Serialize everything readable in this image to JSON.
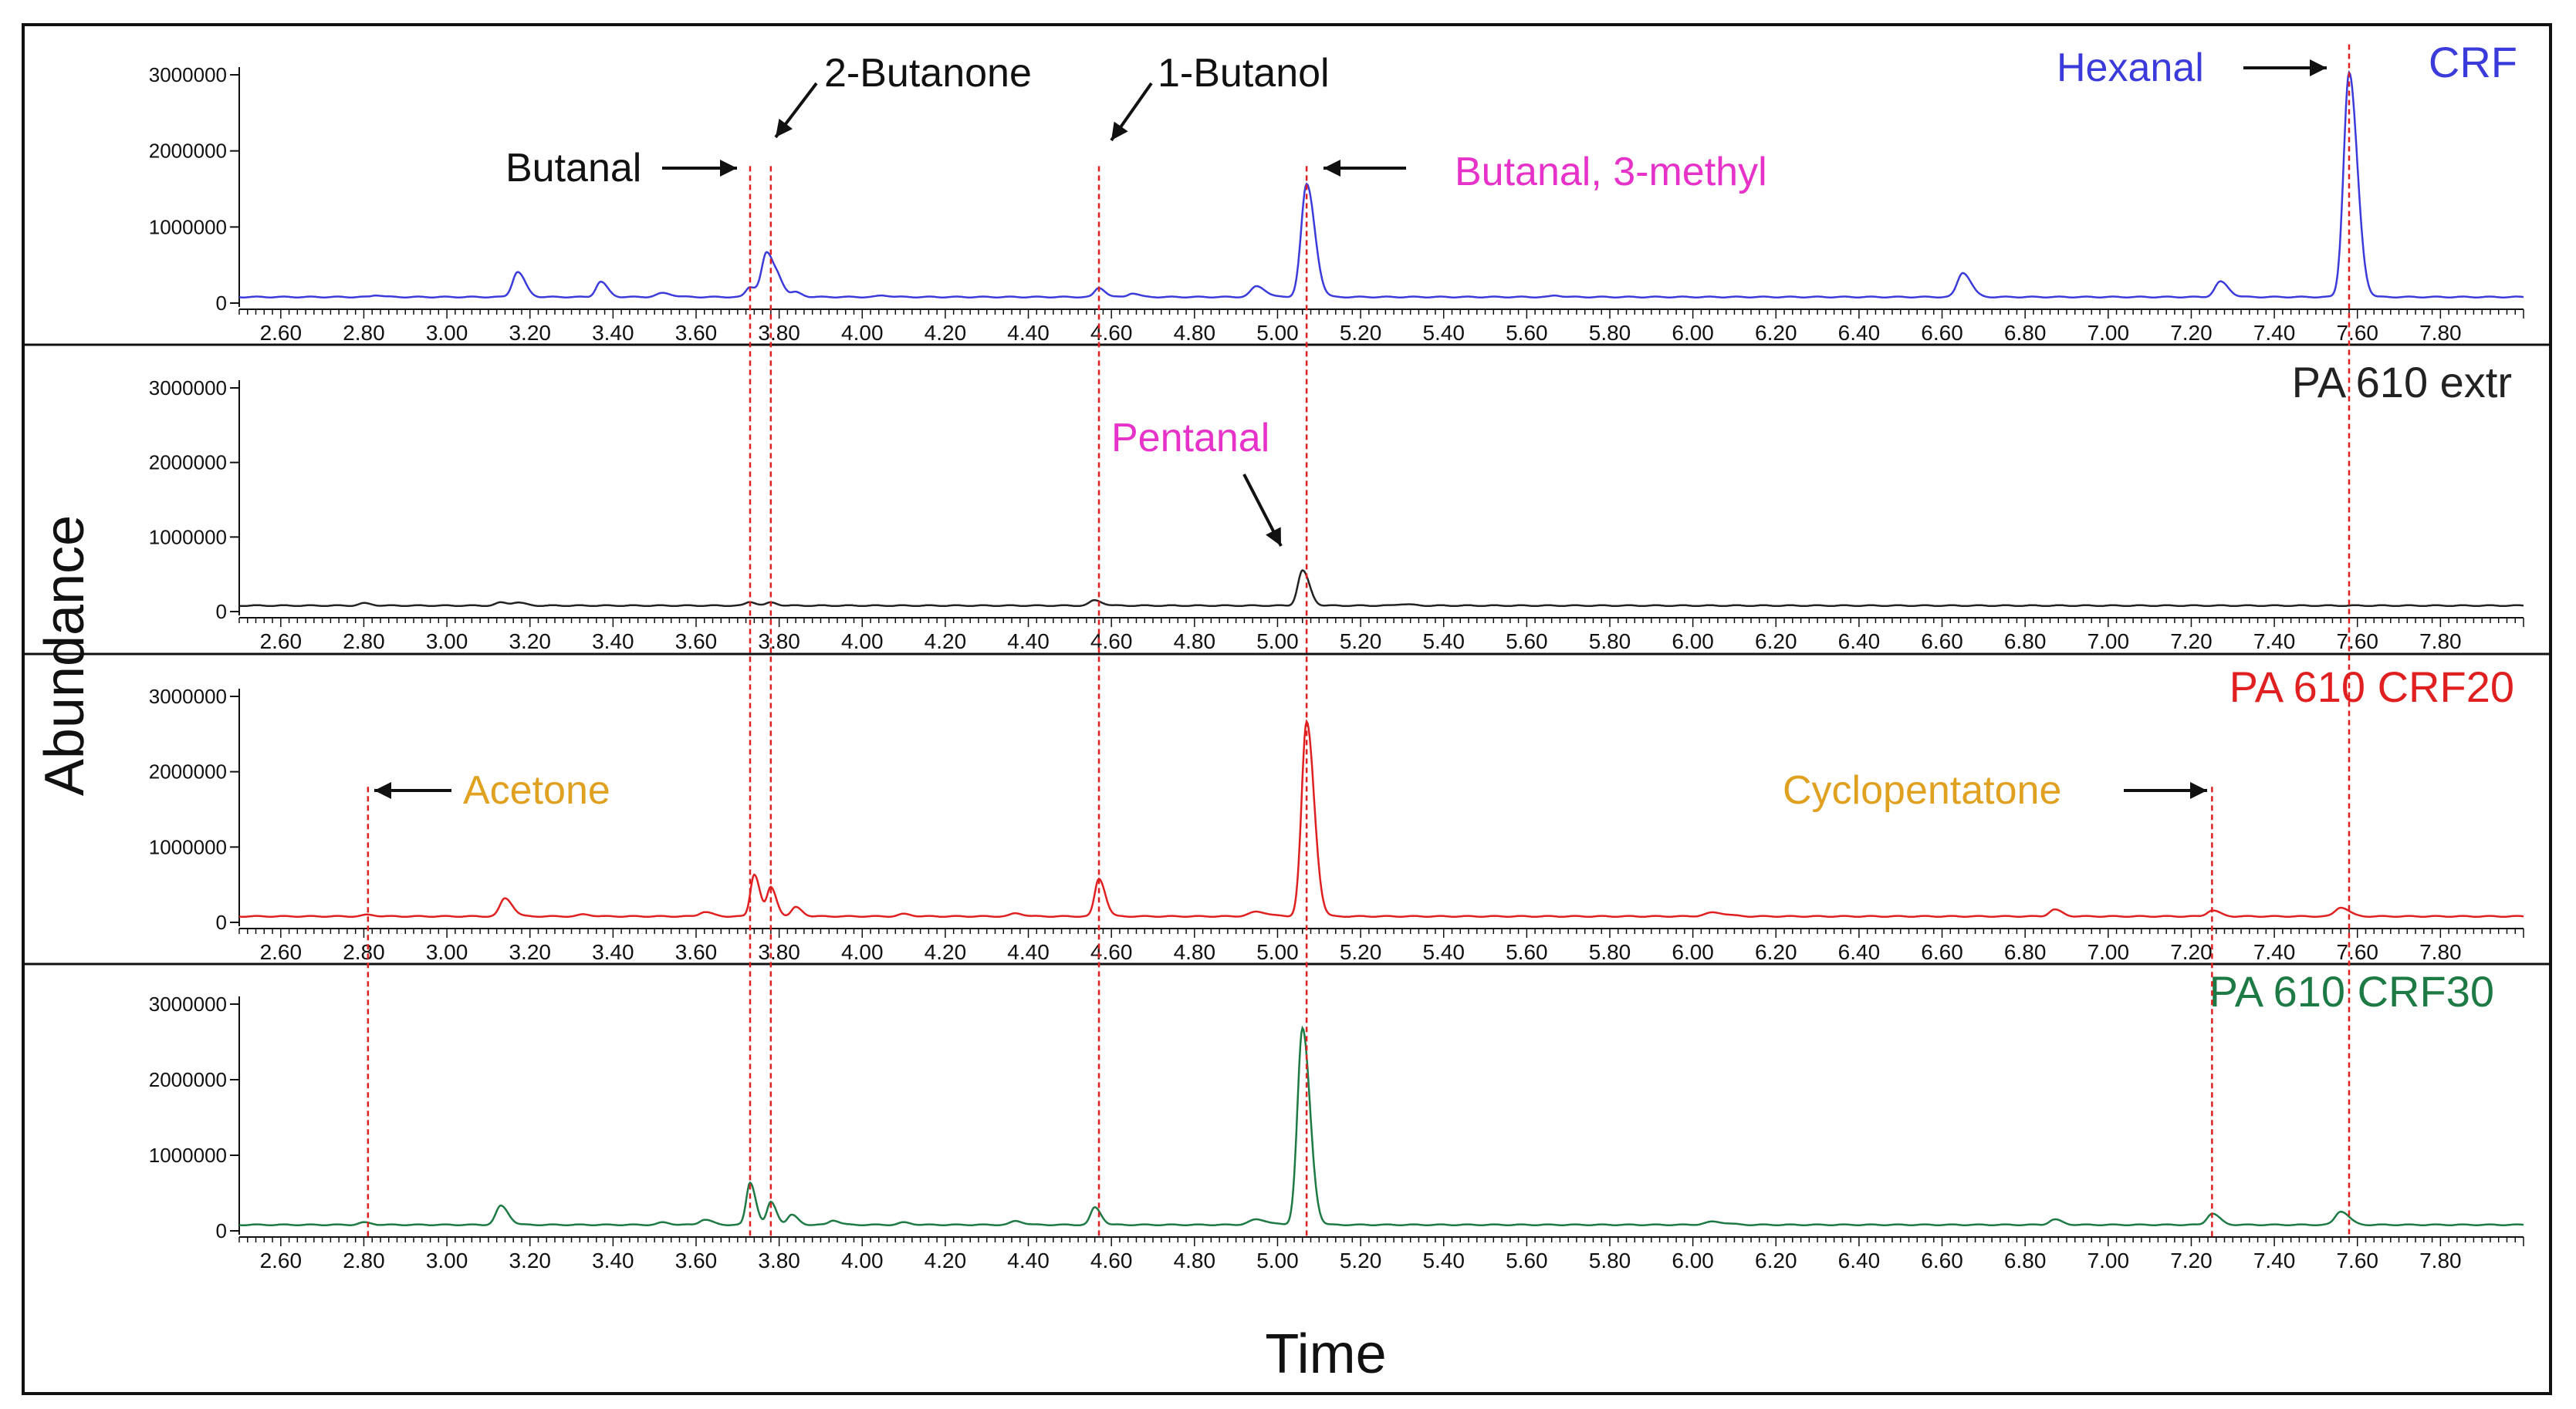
{
  "chart_data": {
    "type": "line",
    "title": "",
    "xlabel": "Time",
    "ylabel": "Abundance",
    "xlim": [
      2.5,
      8.0
    ],
    "ylim": [
      0,
      3000000
    ],
    "x_ticks": [
      "2.60",
      "2.80",
      "3.00",
      "3.20",
      "3.40",
      "3.60",
      "3.80",
      "4.00",
      "4.20",
      "4.40",
      "4.60",
      "4.80",
      "5.00",
      "5.20",
      "5.40",
      "5.60",
      "5.80",
      "6.00",
      "6.20",
      "6.40",
      "6.60",
      "6.80",
      "7.00",
      "7.20",
      "7.40",
      "7.60",
      "7.80"
    ],
    "y_ticks": [
      "0",
      "1000000",
      "2000000",
      "3000000"
    ],
    "grid": false,
    "colors": {
      "CRF": "#3b3bdb",
      "PA 610 extr": "#222222",
      "PA 610 CRF20": "#e02020",
      "PA 610 CRF30": "#1e7a45",
      "ref_line": "#e02020",
      "annot_black": "#111111",
      "annot_magenta": "#e632c8",
      "annot_orange": "#e0a020",
      "annot_blue": "#3b3bdb"
    },
    "series": [
      {
        "name": "CRF",
        "baseline": 80000,
        "peaks": [
          [
            2.83,
            25000,
            0.01
          ],
          [
            3.17,
            330000,
            0.012
          ],
          [
            3.37,
            200000,
            0.011
          ],
          [
            3.52,
            50000,
            0.015
          ],
          [
            3.73,
            130000,
            0.01
          ],
          [
            3.77,
            580000,
            0.012
          ],
          [
            3.8,
            150000,
            0.01
          ],
          [
            3.84,
            60000,
            0.01
          ],
          [
            4.05,
            20000,
            0.012
          ],
          [
            4.57,
            120000,
            0.01
          ],
          [
            4.65,
            50000,
            0.01
          ],
          [
            4.95,
            140000,
            0.014
          ],
          [
            5.07,
            1480000,
            0.013
          ],
          [
            5.67,
            20000,
            0.01
          ],
          [
            6.65,
            320000,
            0.013
          ],
          [
            7.27,
            200000,
            0.013
          ],
          [
            7.58,
            2950000,
            0.013
          ]
        ]
      },
      {
        "name": "PA 610 extr",
        "baseline": 80000,
        "peaks": [
          [
            2.8,
            30000,
            0.012
          ],
          [
            3.13,
            40000,
            0.012
          ],
          [
            3.17,
            40000,
            0.012
          ],
          [
            3.73,
            50000,
            0.01
          ],
          [
            3.78,
            40000,
            0.01
          ],
          [
            4.56,
            70000,
            0.012
          ],
          [
            5.06,
            470000,
            0.011
          ],
          [
            5.3,
            20000,
            0.015
          ]
        ]
      },
      {
        "name": "PA 610 CRF20",
        "baseline": 80000,
        "peaks": [
          [
            2.81,
            20000,
            0.012
          ],
          [
            3.14,
            240000,
            0.012
          ],
          [
            3.33,
            25000,
            0.012
          ],
          [
            3.62,
            60000,
            0.012
          ],
          [
            3.74,
            560000,
            0.009
          ],
          [
            3.78,
            380000,
            0.009
          ],
          [
            3.84,
            120000,
            0.01
          ],
          [
            4.1,
            30000,
            0.012
          ],
          [
            4.37,
            40000,
            0.012
          ],
          [
            4.57,
            500000,
            0.01
          ],
          [
            4.95,
            60000,
            0.018
          ],
          [
            5.07,
            2580000,
            0.012
          ],
          [
            6.05,
            50000,
            0.02
          ],
          [
            6.87,
            90000,
            0.012
          ],
          [
            7.25,
            80000,
            0.012
          ],
          [
            7.56,
            120000,
            0.013
          ]
        ]
      },
      {
        "name": "PA 610 CRF30",
        "baseline": 80000,
        "peaks": [
          [
            2.8,
            30000,
            0.012
          ],
          [
            3.13,
            250000,
            0.012
          ],
          [
            3.52,
            30000,
            0.012
          ],
          [
            3.62,
            70000,
            0.012
          ],
          [
            3.73,
            560000,
            0.009
          ],
          [
            3.78,
            300000,
            0.009
          ],
          [
            3.83,
            130000,
            0.01
          ],
          [
            3.93,
            60000,
            0.01
          ],
          [
            4.1,
            30000,
            0.012
          ],
          [
            4.37,
            50000,
            0.012
          ],
          [
            4.56,
            230000,
            0.01
          ],
          [
            4.95,
            70000,
            0.018
          ],
          [
            5.06,
            2600000,
            0.012
          ],
          [
            6.05,
            40000,
            0.02
          ],
          [
            6.87,
            70000,
            0.012
          ],
          [
            7.25,
            150000,
            0.012
          ],
          [
            7.56,
            180000,
            0.013
          ]
        ]
      }
    ],
    "panel_labels": [
      "CRF",
      "PA 610 extr",
      "PA 610 CRF20",
      "PA 610 CRF30"
    ],
    "reference_lines": [
      {
        "x": 2.81,
        "from_panel": 2,
        "top_value": 1800000
      },
      {
        "x": 3.73,
        "from_panel": 0,
        "top_value": 1800000
      },
      {
        "x": 3.78,
        "from_panel": 0,
        "top_value": 1800000
      },
      {
        "x": 4.57,
        "from_panel": 0,
        "top_value": 1800000
      },
      {
        "x": 5.07,
        "from_panel": 0,
        "top_value": 1800000
      },
      {
        "x": 7.25,
        "from_panel": 2,
        "top_value": 1800000
      },
      {
        "x": 7.58,
        "from_panel": 0,
        "top_value": 3400000
      }
    ],
    "annotations": [
      {
        "text": "Butanal",
        "color": "annot_black",
        "panel": 0
      },
      {
        "text": "2-Butanone",
        "color": "annot_black",
        "panel": 0
      },
      {
        "text": "1-Butanol",
        "color": "annot_black",
        "panel": 0
      },
      {
        "text": "Butanal, 3-methyl",
        "color": "annot_magenta",
        "panel": 0
      },
      {
        "text": "Hexanal",
        "color": "annot_blue",
        "panel": 0
      },
      {
        "text": "Pentanal",
        "color": "annot_magenta",
        "panel": 1
      },
      {
        "text": "Acetone",
        "color": "annot_orange",
        "panel": 2
      },
      {
        "text": "Cyclopentatone",
        "color": "annot_orange",
        "panel": 2
      }
    ]
  }
}
